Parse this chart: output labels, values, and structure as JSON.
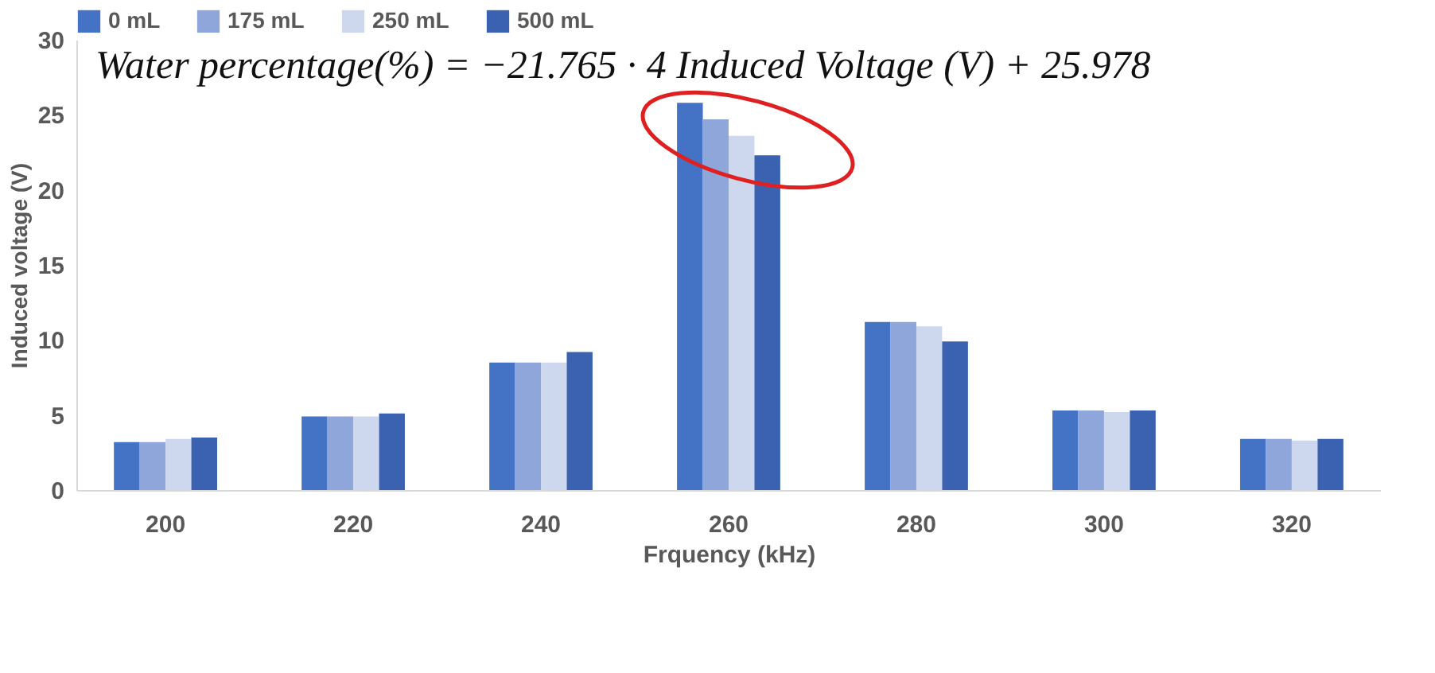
{
  "chart_data": {
    "type": "bar",
    "xlabel": "Frquency (kHz)",
    "ylabel": "Induced voltage (V)",
    "categories": [
      "200",
      "220",
      "240",
      "260",
      "280",
      "300",
      "320"
    ],
    "series": [
      {
        "name": "0 mL",
        "color": "#4472c4",
        "values": [
          3.2,
          4.9,
          8.5,
          25.8,
          11.2,
          5.3,
          3.4
        ]
      },
      {
        "name": "175 mL",
        "color": "#8ea6d9",
        "values": [
          3.2,
          4.9,
          8.5,
          24.7,
          11.2,
          5.3,
          3.4
        ]
      },
      {
        "name": "250 mL",
        "color": "#cdd8ee",
        "values": [
          3.4,
          4.9,
          8.5,
          23.6,
          10.9,
          5.2,
          3.3
        ]
      },
      {
        "name": "500 mL",
        "color": "#3a62b0",
        "values": [
          3.5,
          5.1,
          9.2,
          22.3,
          9.9,
          5.3,
          3.4
        ]
      }
    ],
    "ylim": [
      0,
      30
    ],
    "yticks": [
      0,
      5,
      10,
      15,
      20,
      25,
      30
    ],
    "grid": false,
    "legend": "top",
    "annotations": [
      "Water percentage(%) = −21.765 · 4 Induced Voltage (V) + 25.978"
    ]
  }
}
